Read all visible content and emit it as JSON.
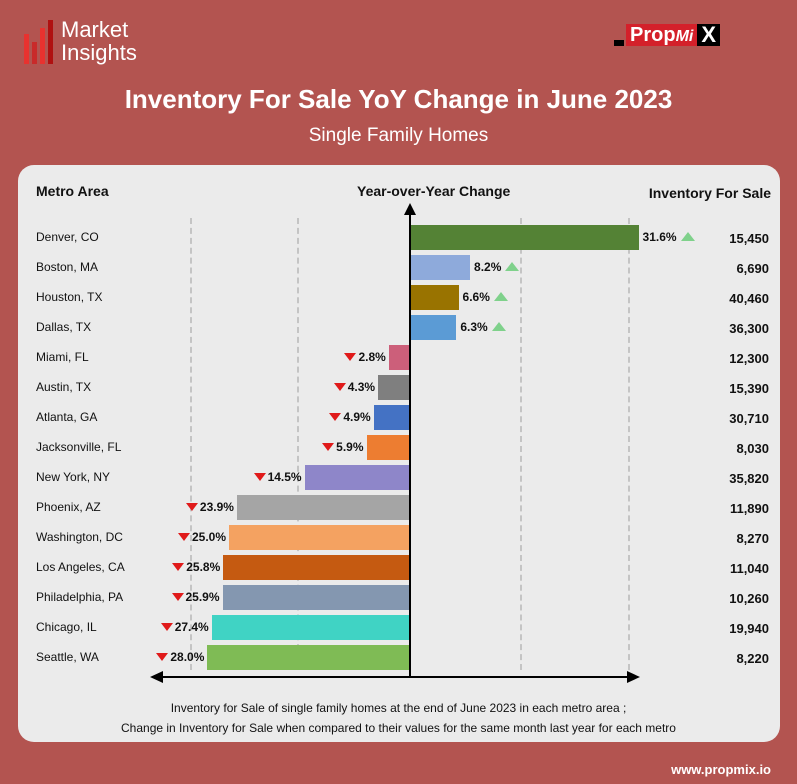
{
  "brand": {
    "left_logo_line1": "Market",
    "left_logo_line2": "Insights",
    "right_logo_a": "Prop",
    "right_logo_b": "Mi",
    "right_logo_c": "X",
    "website": "www.propmix.io"
  },
  "chart_data": {
    "type": "bar",
    "orientation": "horizontal",
    "title": "Inventory For Sale YoY Change in June 2023",
    "subtitle": "Single Family Homes",
    "column_headers": {
      "metro": "Metro Area",
      "change": "Year-over-Year Change",
      "inventory": "Inventory For Sale"
    },
    "grid": "dashed vertical",
    "rows": [
      {
        "metro": "Denver, CO",
        "change": 31.6,
        "label": "31.6%",
        "inventory": "15,450",
        "color": "#548235"
      },
      {
        "metro": "Boston, MA",
        "change": 8.2,
        "label": "8.2%",
        "inventory": "6,690",
        "color": "#8eaadb"
      },
      {
        "metro": "Houston, TX",
        "change": 6.6,
        "label": "6.6%",
        "inventory": "40,460",
        "color": "#997300"
      },
      {
        "metro": "Dallas, TX",
        "change": 6.3,
        "label": "6.3%",
        "inventory": "36,300",
        "color": "#5b9bd5"
      },
      {
        "metro": "Miami, FL",
        "change": -2.8,
        "label": "2.8%",
        "inventory": "12,300",
        "color": "#cc5f7a"
      },
      {
        "metro": "Austin, TX",
        "change": -4.3,
        "label": "4.3%",
        "inventory": "15,390",
        "color": "#7f7f7f"
      },
      {
        "metro": "Atlanta, GA",
        "change": -4.9,
        "label": "4.9%",
        "inventory": "30,710",
        "color": "#4472c4"
      },
      {
        "metro": "Jacksonville, FL",
        "change": -5.9,
        "label": "5.9%",
        "inventory": "8,030",
        "color": "#ed7d31"
      },
      {
        "metro": "New York, NY",
        "change": -14.5,
        "label": "14.5%",
        "inventory": "35,820",
        "color": "#8e86c9"
      },
      {
        "metro": "Phoenix, AZ",
        "change": -23.9,
        "label": "23.9%",
        "inventory": "11,890",
        "color": "#a5a5a5"
      },
      {
        "metro": "Washington, DC",
        "change": -25.0,
        "label": "25.0%",
        "inventory": "8,270",
        "color": "#f4a261"
      },
      {
        "metro": "Los Angeles, CA",
        "change": -25.8,
        "label": "25.8%",
        "inventory": "11,040",
        "color": "#c55a11"
      },
      {
        "metro": "Philadelphia, PA",
        "change": -25.9,
        "label": "25.9%",
        "inventory": "10,260",
        "color": "#8497b0"
      },
      {
        "metro": "Chicago, IL",
        "change": -27.4,
        "label": "27.4%",
        "inventory": "19,940",
        "color": "#40d3c4"
      },
      {
        "metro": "Seattle, WA",
        "change": -28.0,
        "label": "28.0%",
        "inventory": "8,220",
        "color": "#7fbb55"
      }
    ],
    "indicator_colors": {
      "up": "#7fd18b",
      "down": "#e01a1a"
    },
    "footnote_line1": "Inventory for Sale of single family homes at the end of June 2023 in each metro area ;",
    "footnote_line2": "Change in Inventory for Sale when compared to their values for the same month last year for each metro"
  }
}
